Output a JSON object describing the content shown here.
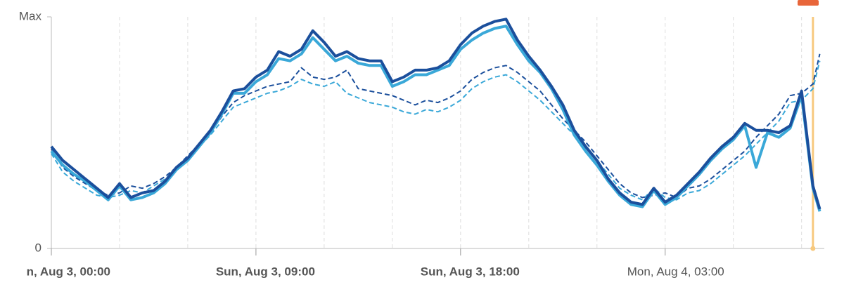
{
  "chart_data": {
    "type": "line",
    "x": [
      0,
      0.5,
      1,
      1.5,
      2,
      2.5,
      3,
      3.5,
      4,
      4.5,
      5,
      5.5,
      6,
      6.5,
      7,
      7.5,
      8,
      8.5,
      9,
      9.5,
      10,
      10.5,
      11,
      11.5,
      12,
      12.5,
      13,
      13.5,
      14,
      14.5,
      15,
      15.5,
      16,
      16.5,
      17,
      17.5,
      18,
      18.5,
      19,
      19.5,
      20,
      20.5,
      21,
      21.5,
      22,
      22.5,
      23,
      23.5,
      24,
      24.5,
      25,
      25.5,
      26,
      26.5,
      27,
      27.5,
      28,
      28.5,
      29,
      29.5,
      30,
      30.5,
      31,
      31.5,
      32,
      32.5,
      33,
      33.5,
      33.8
    ],
    "series": [
      {
        "color": "#1b4f9c",
        "dashed": false,
        "values": [
          44,
          38,
          34,
          30,
          26,
          22,
          28,
          22,
          24,
          25,
          29,
          35,
          39,
          45,
          51,
          59,
          68,
          69,
          74,
          77,
          85,
          83,
          86,
          94,
          89,
          83,
          85,
          82,
          81,
          81,
          72,
          74,
          77,
          77,
          78,
          81,
          88,
          93,
          96,
          98,
          99,
          90,
          83,
          77,
          70,
          62,
          51,
          44,
          38,
          30,
          24,
          20,
          19,
          26,
          20,
          23,
          28,
          33,
          39,
          44,
          48,
          54,
          51,
          51,
          50,
          53,
          68,
          27,
          17
        ]
      },
      {
        "color": "#3aa8d8",
        "dashed": false,
        "values": [
          42,
          36,
          32,
          29,
          25,
          21,
          27,
          21,
          22,
          24,
          28,
          34,
          38,
          44,
          50,
          58,
          67,
          67,
          72,
          75,
          82,
          81,
          84,
          91,
          86,
          81,
          83,
          80,
          79,
          79,
          70,
          72,
          75,
          75,
          77,
          79,
          86,
          90,
          93,
          95,
          96,
          88,
          81,
          76,
          69,
          60,
          49,
          42,
          36,
          29,
          23,
          19,
          18,
          25,
          19,
          22,
          27,
          32,
          38,
          43,
          47,
          53,
          35,
          50,
          48,
          52,
          66,
          26,
          16
        ]
      },
      {
        "color": "#1b4f9c",
        "dashed": true,
        "values": [
          43,
          35,
          31,
          28,
          25,
          23,
          24,
          27,
          26,
          28,
          31,
          35,
          40,
          45,
          50,
          57,
          63,
          66,
          68,
          70,
          71,
          72,
          78,
          74,
          73,
          74,
          77,
          69,
          68,
          67,
          66,
          64,
          62,
          64,
          63,
          65,
          68,
          73,
          76,
          78,
          79,
          76,
          72,
          68,
          62,
          56,
          51,
          46,
          40,
          34,
          28,
          24,
          22,
          23,
          24,
          22,
          26,
          27,
          30,
          34,
          38,
          42,
          48,
          53,
          58,
          66,
          67,
          71,
          84
        ]
      },
      {
        "color": "#3aa8d8",
        "dashed": true,
        "values": [
          41,
          33,
          29,
          26,
          23,
          22,
          23,
          25,
          24,
          27,
          30,
          34,
          39,
          44,
          49,
          55,
          61,
          63,
          65,
          67,
          68,
          70,
          73,
          71,
          70,
          72,
          67,
          65,
          63,
          62,
          61,
          59,
          58,
          60,
          59,
          61,
          64,
          69,
          72,
          74,
          75,
          72,
          68,
          64,
          59,
          54,
          49,
          44,
          38,
          32,
          26,
          23,
          21,
          26,
          22,
          21,
          24,
          25,
          28,
          32,
          36,
          40,
          45,
          50,
          55,
          63,
          64,
          69,
          81
        ]
      }
    ],
    "xlim": [
      0,
      34
    ],
    "xticks": [
      {
        "value": 0,
        "label": "n, Aug 3, 00:00"
      },
      {
        "value": 9,
        "label": "Sun, Aug 3, 09:00"
      },
      {
        "value": 18,
        "label": "Sun, Aug 3, 18:00"
      },
      {
        "value": 27,
        "label": "Mon, Aug 4, 03:00"
      }
    ],
    "xtick_bold": [
      true,
      true,
      true,
      false
    ],
    "xgrid": [
      3,
      6,
      12,
      15,
      21,
      24,
      30,
      33
    ],
    "ylim": [
      0,
      100
    ],
    "yticks": [
      0,
      {
        "value": 100,
        "label": "Max"
      }
    ],
    "cursor_x": 33.5,
    "cursor_color": "#f7c97e"
  }
}
